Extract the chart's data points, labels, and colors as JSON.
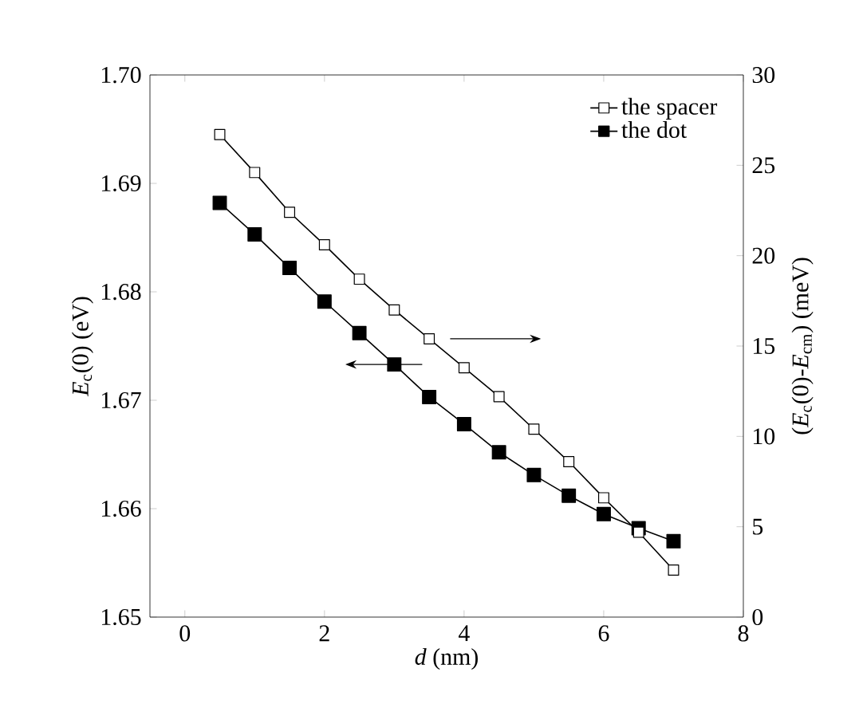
{
  "chart_data": {
    "type": "line",
    "xlabel": "*d* (nm)",
    "ylabel": "*E*$_{c}$(0) (eV)",
    "y2label": "(*E*$_{c}$(0)-*E*$_{cm}$) (meV)",
    "x": [
      0.5,
      1,
      1.5,
      2,
      2.5,
      3,
      3.5,
      4,
      4.5,
      5,
      5.5,
      6,
      6.5,
      7
    ],
    "series": [
      {
        "name": "the spacer",
        "color": "#000000",
        "axis": "y2",
        "values": [
          26.7,
          24.6,
          22.4,
          20.6,
          18.7,
          17.0,
          15.4,
          13.8,
          12.2,
          10.4,
          8.6,
          6.6,
          4.7,
          2.6
        ]
      },
      {
        "name": "the dot",
        "color": "#000000",
        "axis": "y",
        "values": [
          1.6882,
          1.6853,
          1.6822,
          1.6791,
          1.6762,
          1.6733,
          1.6703,
          1.6678,
          1.6652,
          1.6631,
          1.6612,
          1.6595,
          1.6582,
          1.657
        ]
      }
    ],
    "xlim": [
      -0.5,
      8
    ],
    "xticks": [
      0,
      2,
      4,
      6,
      8
    ],
    "ylim": [
      1.65,
      1.7
    ],
    "yticks": [
      {
        "value": 1.65,
        "label": "1.65"
      },
      {
        "value": 1.66,
        "label": "1.66"
      },
      {
        "value": 1.67,
        "label": "1.67"
      },
      {
        "value": 1.68,
        "label": "1.68"
      },
      {
        "value": 1.69,
        "label": "1.69"
      },
      {
        "value": 1.7,
        "label": "1.70"
      }
    ],
    "y2lim": [
      0,
      30
    ],
    "y2ticks": [
      0,
      5,
      10,
      15,
      20,
      25,
      30
    ],
    "grid": false,
    "legend": "top right",
    "marker": "square",
    "line_style": "solid"
  }
}
